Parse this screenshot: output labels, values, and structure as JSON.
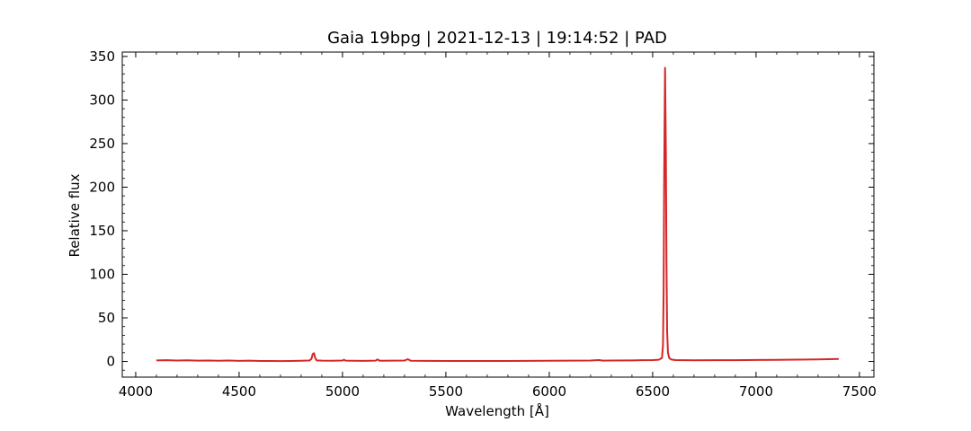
{
  "chart_data": {
    "type": "line",
    "title": "Gaia 19bpg | 2021-12-13 | 19:14:52 | PAD",
    "xlabel": "Wavelength [Å]",
    "ylabel": "Relative flux",
    "xlim": [
      3935,
      7570
    ],
    "ylim": [
      -18,
      355
    ],
    "xticks": [
      4000,
      4500,
      5000,
      5500,
      6000,
      6500,
      7000,
      7500
    ],
    "xtick_labels": [
      "4000",
      "4500",
      "5000",
      "5500",
      "6000",
      "6500",
      "7000",
      "7500"
    ],
    "yticks": [
      0,
      50,
      100,
      150,
      200,
      250,
      300,
      350
    ],
    "ytick_labels": [
      "0",
      "50",
      "100",
      "150",
      "200",
      "250",
      "300",
      "350"
    ],
    "grid": false,
    "series": [
      {
        "color": "#d62728",
        "points": [
          [
            4100,
            1.2
          ],
          [
            4150,
            1.5
          ],
          [
            4200,
            1.0
          ],
          [
            4250,
            1.3
          ],
          [
            4300,
            0.9
          ],
          [
            4350,
            1.1
          ],
          [
            4400,
            0.8
          ],
          [
            4450,
            1.0
          ],
          [
            4500,
            0.7
          ],
          [
            4550,
            0.9
          ],
          [
            4600,
            0.6
          ],
          [
            4650,
            0.5
          ],
          [
            4700,
            0.4
          ],
          [
            4750,
            0.6
          ],
          [
            4800,
            0.8
          ],
          [
            4840,
            1.0
          ],
          [
            4850,
            3.0
          ],
          [
            4856,
            8.5
          ],
          [
            4862,
            9.5
          ],
          [
            4868,
            4.0
          ],
          [
            4875,
            1.2
          ],
          [
            4900,
            0.9
          ],
          [
            4950,
            0.8
          ],
          [
            5000,
            1.0
          ],
          [
            5007,
            2.0
          ],
          [
            5015,
            0.9
          ],
          [
            5050,
            0.8
          ],
          [
            5100,
            0.7
          ],
          [
            5160,
            0.9
          ],
          [
            5169,
            2.3
          ],
          [
            5180,
            0.8
          ],
          [
            5250,
            0.9
          ],
          [
            5300,
            1.0
          ],
          [
            5316,
            2.6
          ],
          [
            5330,
            0.8
          ],
          [
            5400,
            0.7
          ],
          [
            5500,
            0.6
          ],
          [
            5600,
            0.5
          ],
          [
            5700,
            0.6
          ],
          [
            5800,
            0.6
          ],
          [
            5900,
            0.7
          ],
          [
            6000,
            0.8
          ],
          [
            6100,
            0.9
          ],
          [
            6200,
            1.0
          ],
          [
            6240,
            1.6
          ],
          [
            6260,
            0.9
          ],
          [
            6300,
            1.0
          ],
          [
            6400,
            1.2
          ],
          [
            6450,
            1.4
          ],
          [
            6500,
            1.6
          ],
          [
            6530,
            2.0
          ],
          [
            6545,
            4.0
          ],
          [
            6550,
            18.0
          ],
          [
            6553,
            80.0
          ],
          [
            6556,
            220.0
          ],
          [
            6560,
            337.0
          ],
          [
            6564,
            240.0
          ],
          [
            6567,
            110.0
          ],
          [
            6570,
            35.0
          ],
          [
            6574,
            10.0
          ],
          [
            6580,
            4.0
          ],
          [
            6590,
            2.2
          ],
          [
            6610,
            1.6
          ],
          [
            6650,
            1.4
          ],
          [
            6700,
            1.3
          ],
          [
            6800,
            1.4
          ],
          [
            6900,
            1.5
          ],
          [
            7000,
            1.7
          ],
          [
            7100,
            1.9
          ],
          [
            7200,
            2.1
          ],
          [
            7300,
            2.4
          ],
          [
            7350,
            2.6
          ],
          [
            7400,
            2.8
          ]
        ]
      }
    ]
  }
}
